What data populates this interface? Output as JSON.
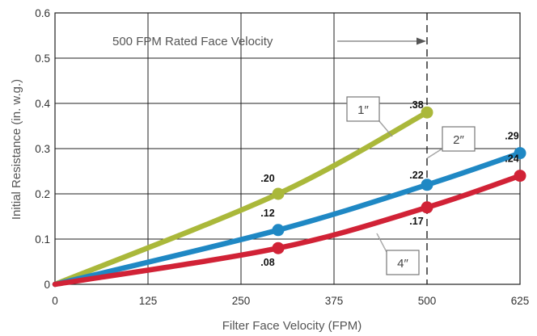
{
  "chart_data": {
    "type": "line",
    "xlabel": "Filter Face Velocity (FPM)",
    "ylabel": "Initial Resistance (in. w.g.)",
    "xlim": [
      0,
      625
    ],
    "ylim": [
      0,
      0.6
    ],
    "x_ticks": [
      "0",
      "125",
      "250",
      "375",
      "500",
      "625"
    ],
    "y_ticks": [
      "0",
      "0.1",
      "0.2",
      "0.3",
      "0.4",
      "0.5",
      "0.6"
    ],
    "grid": true,
    "series": [
      {
        "name": "1″",
        "color": "#aab83a",
        "points": [
          [
            0,
            0
          ],
          [
            300,
            0.2
          ],
          [
            500,
            0.38
          ]
        ],
        "markers": [
          {
            "x": 300,
            "y": 0.2,
            "label": ".20"
          },
          {
            "x": 500,
            "y": 0.38,
            "label": ".38"
          }
        ]
      },
      {
        "name": "2″",
        "color": "#1f88c4",
        "points": [
          [
            0,
            0
          ],
          [
            300,
            0.12
          ],
          [
            500,
            0.22
          ],
          [
            625,
            0.29
          ]
        ],
        "markers": [
          {
            "x": 300,
            "y": 0.12,
            "label": ".12"
          },
          {
            "x": 500,
            "y": 0.22,
            "label": ".22"
          },
          {
            "x": 625,
            "y": 0.29,
            "label": ".29"
          }
        ]
      },
      {
        "name": "4″",
        "color": "#d12236",
        "points": [
          [
            0,
            0
          ],
          [
            300,
            0.08
          ],
          [
            500,
            0.17
          ],
          [
            625,
            0.24
          ]
        ],
        "markers": [
          {
            "x": 300,
            "y": 0.08,
            "label": ".08"
          },
          {
            "x": 500,
            "y": 0.17,
            "label": ".17"
          },
          {
            "x": 625,
            "y": 0.24,
            "label": ".24"
          }
        ]
      }
    ],
    "reference_line": {
      "x": 500,
      "style": "dashed",
      "label": "500 FPM Rated Face Velocity"
    }
  }
}
